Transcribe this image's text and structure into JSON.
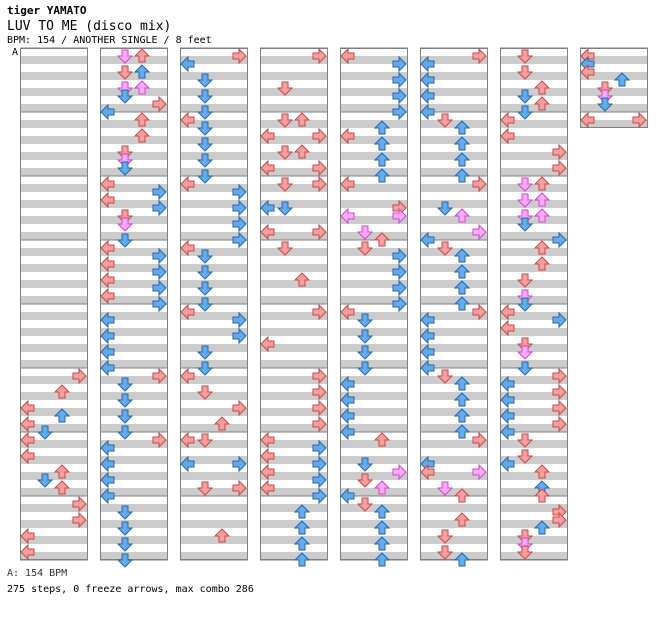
{
  "header": {
    "artist": "tiger YAMATO",
    "song_title": "LUV TO ME (disco mix)",
    "info": "BPM: 154 / ANOTHER SINGLE / 8 feet"
  },
  "chart_label": "A",
  "footer": {
    "bpm_line": "A: 154 BPM",
    "stats_line": "275 steps, 0 freeze arrows, max combo 286"
  },
  "colors": {
    "quarter_arrow": "#f4a0a0",
    "eighth_arrow": "#66aaee",
    "sixteenth_arrow": "#ffaaff",
    "stripe": "#cccccc",
    "border": "#808080"
  }
}
